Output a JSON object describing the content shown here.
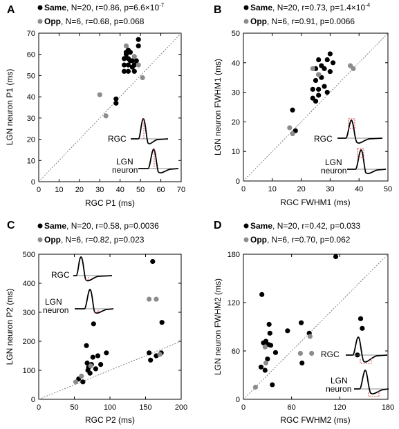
{
  "colors": {
    "same": "#000000",
    "opp": "#8c8c8c",
    "diag": "#808080",
    "marker": "#e04040"
  },
  "chart_data": [
    {
      "panel": "A",
      "type": "scatter",
      "xlabel": "RGC P1 (ms)",
      "ylabel": "LGN neuron P1 (ms)",
      "xlim": [
        0,
        70
      ],
      "ylim": [
        0,
        70
      ],
      "xticks": [
        "0",
        "10",
        "20",
        "30",
        "40",
        "50",
        "60",
        "70"
      ],
      "yticks": [
        "0",
        "10",
        "20",
        "30",
        "40",
        "50",
        "60",
        "70"
      ],
      "legend": [
        {
          "group": "Same",
          "rest": ", N=20, r=0.86, p=6.6×10",
          "sup": "-7"
        },
        {
          "group": "Opp",
          "rest": ", N=6, r=0.68, p=0.068",
          "sup": ""
        }
      ],
      "inset_labels": [
        "RGC",
        "LGN",
        "neuron"
      ],
      "series": [
        {
          "name": "Same",
          "points": [
            [
              38,
              39
            ],
            [
              38,
              37
            ],
            [
              42,
              52
            ],
            [
              42,
              55
            ],
            [
              42,
              58
            ],
            [
              43,
              60
            ],
            [
              43,
              61
            ],
            [
              44,
              52
            ],
            [
              44,
              55
            ],
            [
              44,
              58
            ],
            [
              44,
              62
            ],
            [
              45,
              57
            ],
            [
              45,
              61
            ],
            [
              46,
              54
            ],
            [
              46,
              57
            ],
            [
              47,
              52
            ],
            [
              47,
              55
            ],
            [
              48,
              57
            ],
            [
              49,
              64
            ],
            [
              49,
              67
            ]
          ]
        },
        {
          "name": "Opp",
          "points": [
            [
              30,
              41
            ],
            [
              33,
              31
            ],
            [
              43,
              64
            ],
            [
              47,
              59
            ],
            [
              49,
              55
            ],
            [
              51,
              49
            ]
          ]
        }
      ]
    },
    {
      "panel": "B",
      "type": "scatter",
      "xlabel": "RGC FWHM1 (ms)",
      "ylabel": "LGN neuron FWHM1 (ms)",
      "xlim": [
        0,
        50
      ],
      "ylim": [
        0,
        50
      ],
      "xticks": [
        "0",
        "10",
        "20",
        "30",
        "40",
        "50"
      ],
      "yticks": [
        "0",
        "10",
        "20",
        "30",
        "40",
        "50"
      ],
      "legend": [
        {
          "group": "Same",
          "rest": ", N=20, r=0.73, p=1.4×10",
          "sup": "-4"
        },
        {
          "group": "Opp",
          "rest": ", N=6, r=0.91, p=0.0066",
          "sup": ""
        }
      ],
      "inset_labels": [
        "RGC",
        "LGN",
        "neuron"
      ],
      "series": [
        {
          "name": "Same",
          "points": [
            [
              17,
              24
            ],
            [
              18,
              17
            ],
            [
              24,
              28
            ],
            [
              24,
              31
            ],
            [
              25,
              27
            ],
            [
              25,
              34
            ],
            [
              25,
              38
            ],
            [
              26,
              41
            ],
            [
              26,
              29
            ],
            [
              26,
              31
            ],
            [
              26,
              36
            ],
            [
              27,
              35
            ],
            [
              27,
              39
            ],
            [
              28,
              38
            ],
            [
              28,
              32
            ],
            [
              29,
              41
            ],
            [
              29,
              30
            ],
            [
              30,
              43
            ],
            [
              30,
              37
            ],
            [
              31,
              40
            ]
          ]
        },
        {
          "name": "Opp",
          "points": [
            [
              16,
              18
            ],
            [
              17,
              16
            ],
            [
              24,
              38
            ],
            [
              26,
              36
            ],
            [
              37,
              39
            ],
            [
              38,
              38
            ]
          ]
        }
      ]
    },
    {
      "panel": "C",
      "type": "scatter",
      "xlabel": "RGC P2 (ms)",
      "ylabel": "LGN neuron P2 (ms)",
      "xlim": [
        0,
        200
      ],
      "ylim": [
        0,
        500
      ],
      "xticks": [
        "0",
        "50",
        "100",
        "150",
        "200"
      ],
      "yticks": [
        "0",
        "100",
        "200",
        "300",
        "400",
        "500"
      ],
      "legend": [
        {
          "group": "Same",
          "rest": ", N=20, r=0.58, p=0.0036",
          "sup": ""
        },
        {
          "group": "Opp",
          "rest": ", N=6, r=0.82, p=0.023",
          "sup": ""
        }
      ],
      "inset_labels": [
        "RGC",
        "LGN",
        "neuron"
      ],
      "series": [
        {
          "name": "Same",
          "points": [
            [
              56,
              70
            ],
            [
              62,
              60
            ],
            [
              67,
              185
            ],
            [
              68,
              125
            ],
            [
              69,
              100
            ],
            [
              70,
              110
            ],
            [
              72,
              90
            ],
            [
              74,
              120
            ],
            [
              76,
              145
            ],
            [
              77,
              260
            ],
            [
              80,
              105
            ],
            [
              83,
              150
            ],
            [
              87,
              120
            ],
            [
              95,
              160
            ],
            [
              155,
              160
            ],
            [
              157,
              135
            ],
            [
              160,
              475
            ],
            [
              165,
              150
            ],
            [
              172,
              160
            ],
            [
              173,
              265
            ]
          ]
        },
        {
          "name": "Opp",
          "points": [
            [
              52,
              60
            ],
            [
              60,
              80
            ],
            [
              73,
              115
            ],
            [
              155,
              345
            ],
            [
              165,
              345
            ],
            [
              170,
              155
            ]
          ]
        }
      ]
    },
    {
      "panel": "D",
      "type": "scatter",
      "xlabel": "RGC FWHM2 (ms)",
      "ylabel": "LGN neuron FWHM2 (ms)",
      "xlim": [
        0,
        180
      ],
      "ylim": [
        0,
        180
      ],
      "xticks": [
        "0",
        "60",
        "120",
        "180"
      ],
      "yticks": [
        "0",
        "60",
        "120",
        "180"
      ],
      "legend": [
        {
          "group": "Same",
          "rest": ", N=20, r=0.42, p=0.033",
          "sup": ""
        },
        {
          "group": "Opp",
          "rest": ", N=6, r=0.70, p=0.062",
          "sup": ""
        }
      ],
      "inset_labels": [
        "RGC",
        "LGN",
        "neuron"
      ],
      "series": [
        {
          "name": "Same",
          "points": [
            [
              22,
              40
            ],
            [
              23,
              130
            ],
            [
              25,
              70
            ],
            [
              27,
              36
            ],
            [
              28,
              72
            ],
            [
              30,
              50
            ],
            [
              31,
              68
            ],
            [
              32,
              93
            ],
            [
              33,
              82
            ],
            [
              34,
              67
            ],
            [
              36,
              18
            ],
            [
              40,
              58
            ],
            [
              55,
              85
            ],
            [
              72,
              95
            ],
            [
              73,
              45
            ],
            [
              82,
              82
            ],
            [
              115,
              177
            ],
            [
              142,
              55
            ],
            [
              146,
              100
            ],
            [
              148,
              88
            ]
          ]
        },
        {
          "name": "Opp",
          "points": [
            [
              15,
              15
            ],
            [
              27,
              65
            ],
            [
              28,
              45
            ],
            [
              71,
              57
            ],
            [
              83,
              78
            ],
            [
              85,
              57
            ]
          ]
        }
      ]
    }
  ]
}
